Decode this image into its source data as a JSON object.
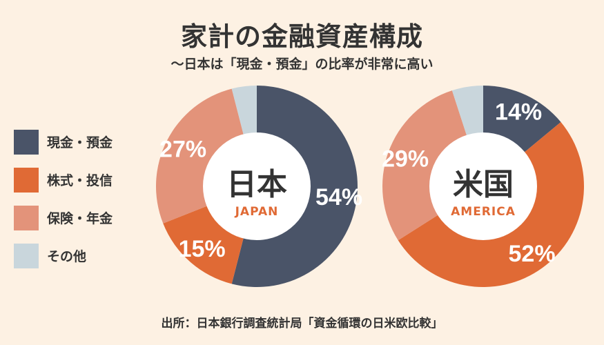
{
  "title": "家計の金融資産構成",
  "subtitle": "〜日本は「現金・預金」の比率が非常に高い",
  "source": "出所：日本銀行調査統計局「資金循環の日米欧比較」",
  "chart_data": {
    "type": "pie",
    "categories": [
      "現金・預金",
      "株式・投信",
      "保険・年金",
      "その他"
    ],
    "colors": [
      "#4a5468",
      "#e06a35",
      "#e3937a",
      "#c9d6dc"
    ],
    "charts": [
      {
        "name": "日本",
        "name_en": "JAPAN",
        "values": [
          54,
          15,
          27,
          4
        ],
        "labels": [
          "54%",
          "15%",
          "27%",
          ""
        ]
      },
      {
        "name": "米国",
        "name_en": "AMERICA",
        "values": [
          14,
          52,
          29,
          5
        ],
        "labels": [
          "14%",
          "52%",
          "29%",
          ""
        ]
      }
    ]
  }
}
